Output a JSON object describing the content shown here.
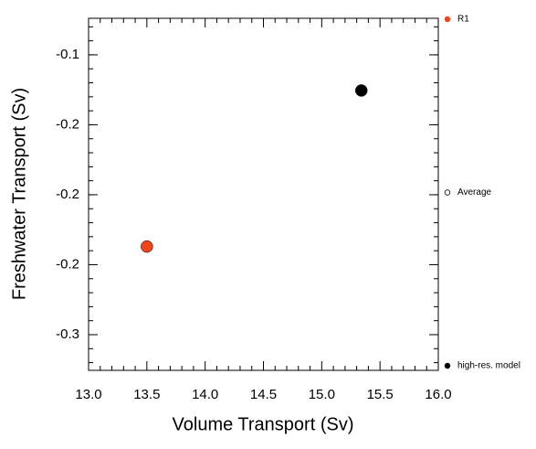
{
  "chart_data": {
    "type": "scatter",
    "x_label": "Volume Transport (Sv)",
    "y_label": "Freshwater Transport (Sv)",
    "xlim": [
      13.0,
      16.0
    ],
    "xticks": [
      {
        "value": 13.0,
        "label": "13.0"
      },
      {
        "value": 13.5,
        "label": "13.5"
      },
      {
        "value": 14.0,
        "label": "14.0"
      },
      {
        "value": 14.5,
        "label": "14.5"
      },
      {
        "value": 15.0,
        "label": "15.0"
      },
      {
        "value": 15.5,
        "label": "15.5"
      },
      {
        "value": 16.0,
        "label": "16.0"
      }
    ],
    "ylim": [
      -0.3255,
      -0.0739
    ],
    "yticks": [
      {
        "value": -0.1,
        "label": "-0.1"
      },
      {
        "value": -0.15,
        "label": "-0.2"
      },
      {
        "value": -0.2,
        "label": "-0.2"
      },
      {
        "value": -0.25,
        "label": "-0.2"
      },
      {
        "value": -0.3,
        "label": "-0.3"
      }
    ],
    "series": [
      {
        "name": "R1",
        "color": "#f0451b",
        "marker": "filled",
        "x": [
          13.5
        ],
        "values": [
          -0.237
        ]
      },
      {
        "name": "Average",
        "color": "#000000",
        "marker": "open",
        "x": [],
        "values": []
      },
      {
        "name": "high-res. model",
        "color": "#000000",
        "marker": "filled",
        "x": [
          15.34
        ],
        "values": [
          -0.1255
        ]
      }
    ]
  }
}
